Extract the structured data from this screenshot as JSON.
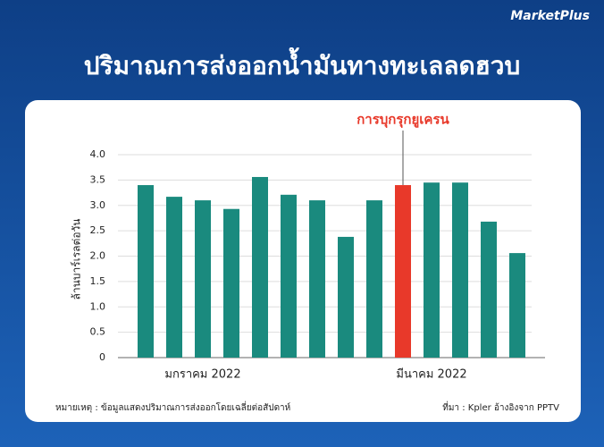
{
  "brand": "MarketPlus",
  "chart_data": {
    "type": "bar",
    "title": "ปริมาณการส่งออกน้ำมันทางทะเลลดฮวบ",
    "y_label": "ล้านบาร์เรลต่อวัน",
    "annotation": "การบุกรุกยูเครน",
    "annotation_color": "#e8392a",
    "categories": [
      null,
      null,
      "มกราคม 2022",
      null,
      null,
      null,
      null,
      null,
      null,
      null,
      "มีนาคม 2022",
      null,
      null,
      null
    ],
    "values": [
      3.4,
      3.17,
      3.1,
      2.93,
      3.56,
      3.21,
      3.1,
      2.38,
      3.1,
      3.4,
      3.45,
      3.45,
      2.68,
      2.06
    ],
    "colors": [
      "#1a8a7e",
      "#1a8a7e",
      "#1a8a7e",
      "#1a8a7e",
      "#1a8a7e",
      "#1a8a7e",
      "#1a8a7e",
      "#1a8a7e",
      "#1a8a7e",
      "#e8392a",
      "#1a8a7e",
      "#1a8a7e",
      "#1a8a7e",
      "#1a8a7e"
    ],
    "ylim": [
      0,
      4.0
    ],
    "yticks": [
      0,
      0.5,
      {
        "value": 1,
        "label": "1.0"
      },
      1.5,
      {
        "value": 2,
        "label": "2.0"
      },
      2.5,
      {
        "value": 3,
        "label": "3.0"
      },
      3.5,
      {
        "value": 4,
        "label": "4.0"
      }
    ],
    "grid": true,
    "note": "หมายเหตุ : ข้อมูลแสดงปริมาณการส่งออกโดยเฉลี่ยต่อสัปดาห์",
    "source": "ที่มา :  Kpler  อ้างอิงจาก PPTV"
  }
}
